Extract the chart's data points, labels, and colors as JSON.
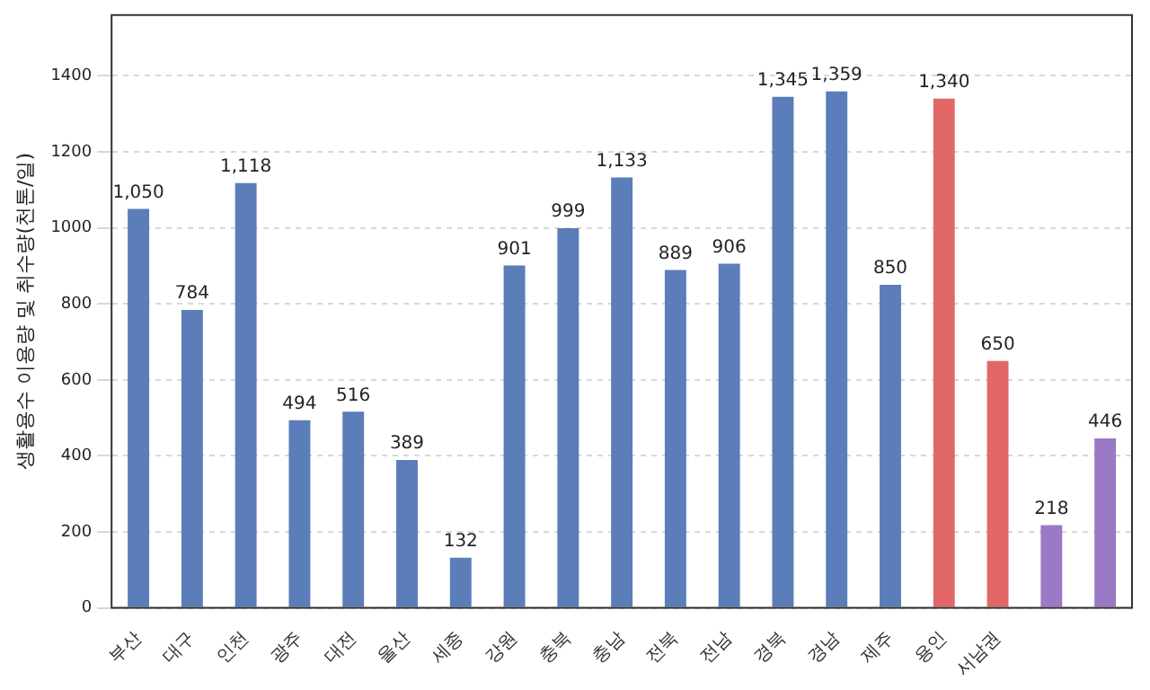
{
  "chart_data": {
    "type": "bar",
    "ylabel": "생활용수 이용량 및 취수량(천톤/일)",
    "categories": [
      "부산",
      "대구",
      "인천",
      "광주",
      "대전",
      "울산",
      "세종",
      "강원",
      "충북",
      "충남",
      "전북",
      "전남",
      "경북",
      "경남",
      "제주",
      "용인",
      "서남권",
      null,
      null
    ],
    "values": [
      1050,
      784,
      1118,
      494,
      516,
      389,
      132,
      901,
      999,
      1133,
      889,
      906,
      1345,
      1359,
      850,
      1340,
      650,
      218,
      446
    ],
    "colors": [
      "#5b7db9",
      "#5b7db9",
      "#5b7db9",
      "#5b7db9",
      "#5b7db9",
      "#5b7db9",
      "#5b7db9",
      "#5b7db9",
      "#5b7db9",
      "#5b7db9",
      "#5b7db9",
      "#5b7db9",
      "#5b7db9",
      "#5b7db9",
      "#5b7db9",
      "#e26868",
      "#e26868",
      "#9a79c6",
      "#9a79c6"
    ],
    "value_labels": [
      "1,050",
      "784",
      "1,118",
      "494",
      "516",
      "389",
      "132",
      "901",
      "999",
      "1,133",
      "889",
      "906",
      "1,345",
      "1,359",
      "850",
      "1,340",
      "650",
      "218",
      "446"
    ],
    "ylim": [
      0,
      1560
    ],
    "yticks": [
      0,
      200,
      400,
      600,
      800,
      1000,
      1200,
      1400
    ],
    "grid": "y",
    "legend": false
  }
}
